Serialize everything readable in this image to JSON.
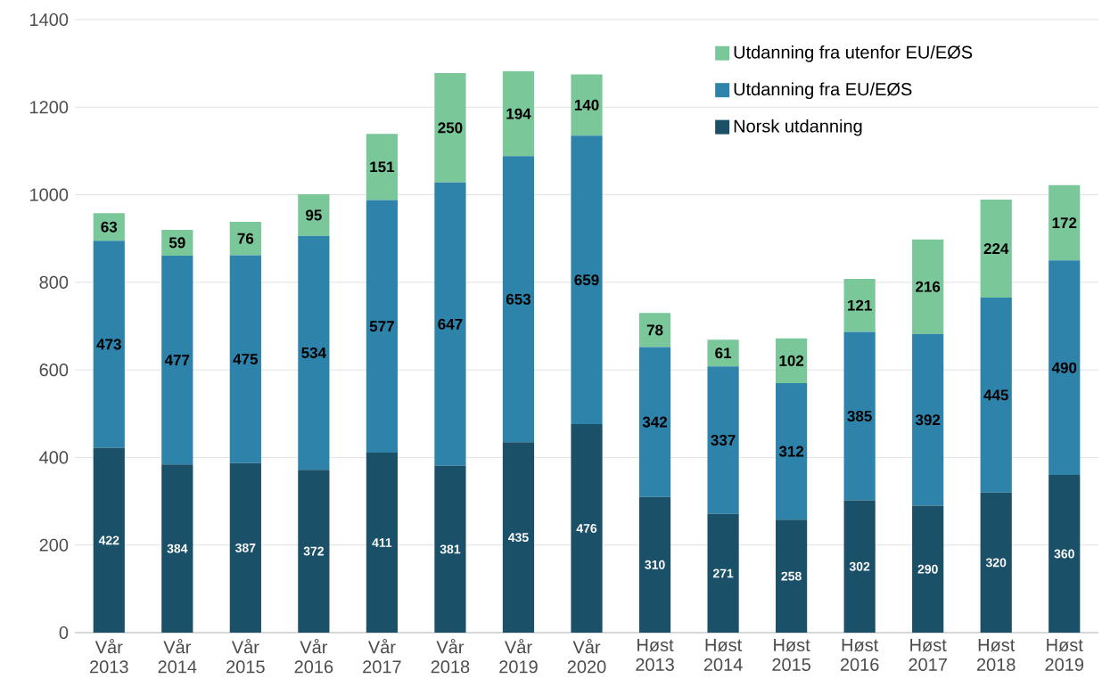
{
  "chart_data": {
    "type": "bar",
    "stacked": true,
    "categories": [
      "Vår 2013",
      "Vår 2014",
      "Vår 2015",
      "Vår 2016",
      "Vår 2017",
      "Vår 2018",
      "Vår 2019",
      "Vår 2020",
      "Høst 2013",
      "Høst 2014",
      "Høst 2015",
      "Høst 2016",
      "Høst 2017",
      "Høst 2018",
      "Høst 2019"
    ],
    "series": [
      {
        "name": "Norsk utdanning",
        "color": "#1b5069",
        "values": [
          422,
          384,
          387,
          372,
          411,
          381,
          435,
          476,
          310,
          271,
          258,
          302,
          290,
          320,
          360
        ]
      },
      {
        "name": "Utdanning fra EU/EØS",
        "color": "#2e83ab",
        "values": [
          473,
          477,
          475,
          534,
          577,
          647,
          653,
          659,
          342,
          337,
          312,
          385,
          392,
          445,
          490
        ]
      },
      {
        "name": "Utdanning fra utenfor EU/EØS",
        "color": "#7ac79a",
        "values": [
          63,
          59,
          76,
          95,
          151,
          250,
          194,
          140,
          78,
          61,
          102,
          121,
          216,
          224,
          172
        ]
      }
    ],
    "ylim": [
      0,
      1400
    ],
    "yticks": [
      0,
      200,
      400,
      600,
      800,
      1000,
      1200,
      1400
    ],
    "grid": "y",
    "legend": "top right",
    "data_labels": true
  }
}
